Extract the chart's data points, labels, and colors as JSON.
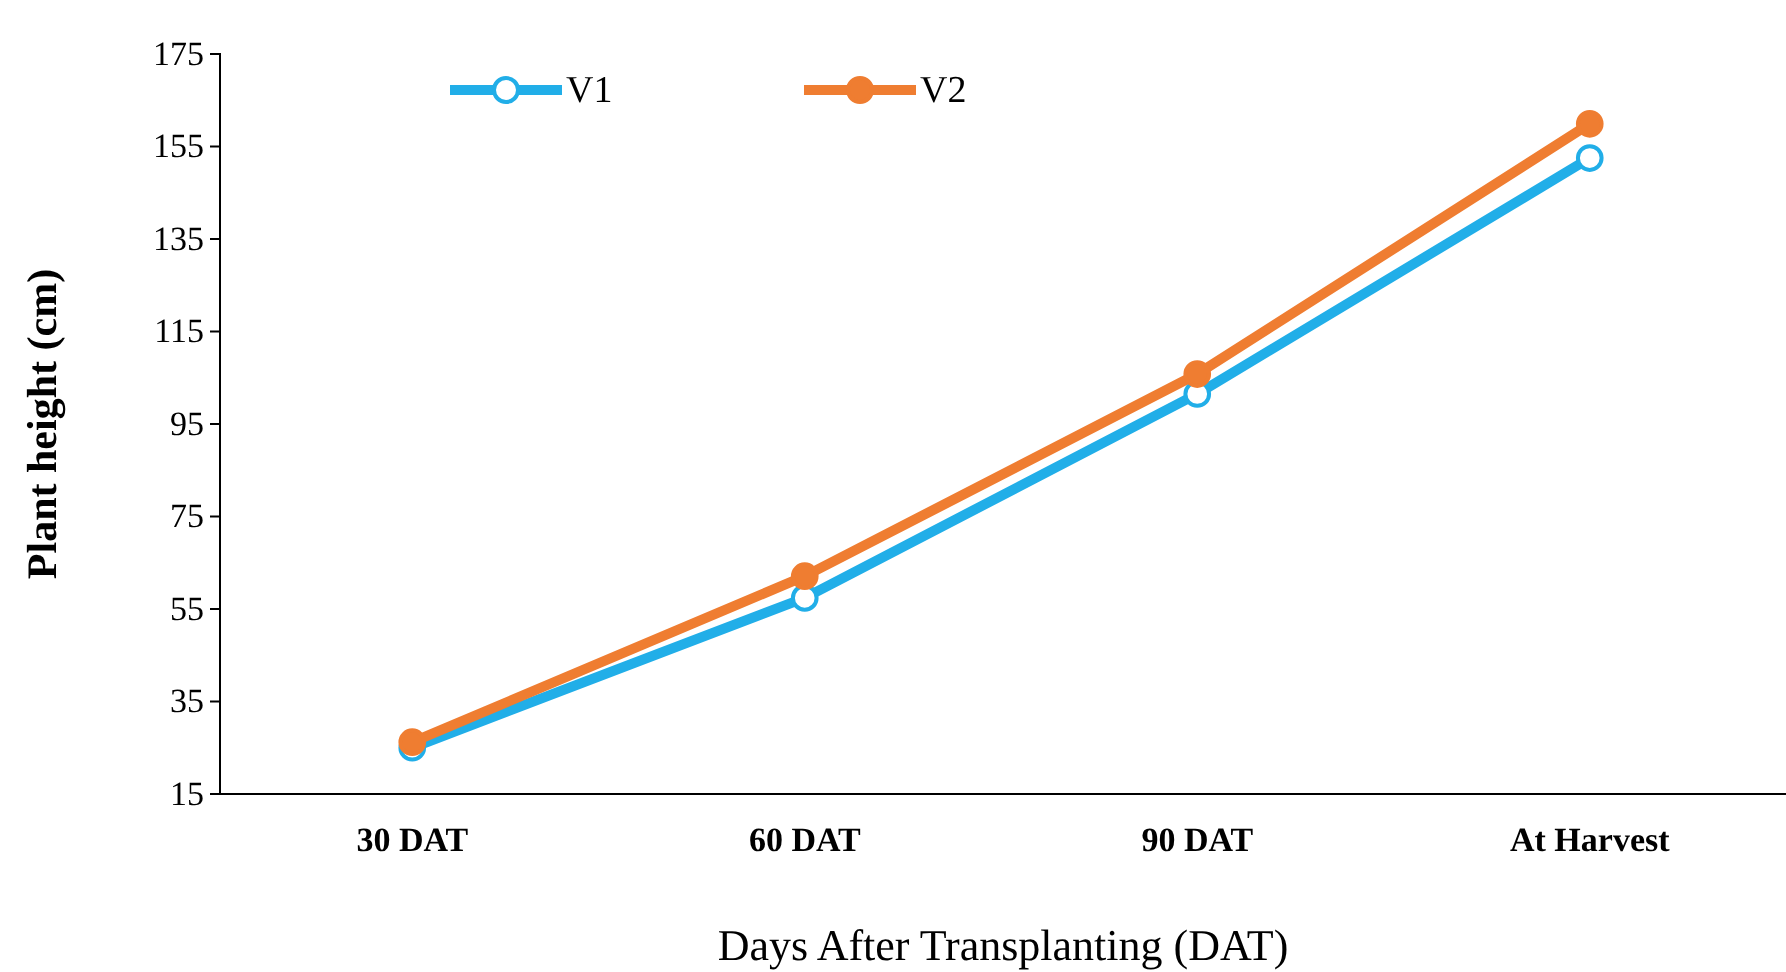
{
  "chart_data": {
    "type": "line",
    "xlabel": "Days After Transplanting (DAT)",
    "ylabel": "Plant height (cm)",
    "categories": [
      "30 DAT",
      "60 DAT",
      "90 DAT",
      "At Harvest"
    ],
    "series": [
      {
        "name": "V1",
        "color": "#21aee8",
        "values": [
          25,
          57.4,
          101.5,
          152.5
        ]
      },
      {
        "name": "V2",
        "color": "#ef7d31",
        "values": [
          26.2,
          62.1,
          105.8,
          159.9
        ]
      }
    ],
    "ylim": [
      15,
      175
    ],
    "yticks": [
      15,
      35,
      55,
      75,
      95,
      115,
      135,
      155,
      175
    ],
    "grid": false,
    "legend": "top left",
    "marker": "circle",
    "line_style": "solid"
  }
}
